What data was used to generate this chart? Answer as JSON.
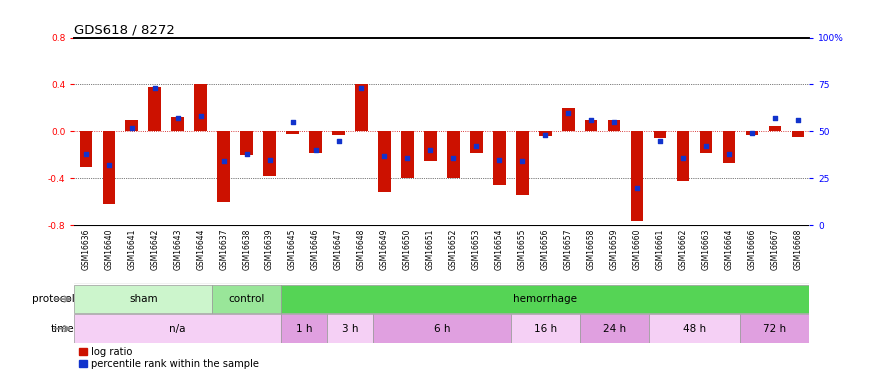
{
  "title": "GDS618 / 8272",
  "samples": [
    "GSM16636",
    "GSM16640",
    "GSM16641",
    "GSM16642",
    "GSM16643",
    "GSM16644",
    "GSM16637",
    "GSM16638",
    "GSM16639",
    "GSM16645",
    "GSM16646",
    "GSM16647",
    "GSM16648",
    "GSM16649",
    "GSM16650",
    "GSM16651",
    "GSM16652",
    "GSM16653",
    "GSM16654",
    "GSM16655",
    "GSM16656",
    "GSM16657",
    "GSM16658",
    "GSM16659",
    "GSM16660",
    "GSM16661",
    "GSM16662",
    "GSM16663",
    "GSM16664",
    "GSM16666",
    "GSM16667",
    "GSM16668"
  ],
  "log_ratio": [
    -0.3,
    -0.62,
    0.1,
    0.38,
    0.12,
    0.4,
    -0.6,
    -0.2,
    -0.38,
    -0.02,
    -0.18,
    -0.03,
    0.4,
    -0.52,
    -0.4,
    -0.25,
    -0.4,
    -0.18,
    -0.46,
    -0.54,
    -0.04,
    0.2,
    0.1,
    0.1,
    -0.76,
    -0.06,
    -0.42,
    -0.18,
    -0.27,
    -0.03,
    0.05,
    -0.05
  ],
  "percentile": [
    38,
    32,
    52,
    73,
    57,
    58,
    34,
    38,
    35,
    55,
    40,
    45,
    73,
    37,
    36,
    40,
    36,
    42,
    35,
    34,
    48,
    60,
    56,
    55,
    20,
    45,
    36,
    42,
    38,
    49,
    57,
    56
  ],
  "protocol_groups": [
    {
      "label": "sham",
      "start": 0,
      "end": 6,
      "color": "#ccf5cc"
    },
    {
      "label": "control",
      "start": 6,
      "end": 9,
      "color": "#99e699"
    },
    {
      "label": "hemorrhage",
      "start": 9,
      "end": 32,
      "color": "#55d455"
    }
  ],
  "time_groups": [
    {
      "label": "n/a",
      "start": 0,
      "end": 9,
      "color": "#f5d0f5"
    },
    {
      "label": "1 h",
      "start": 9,
      "end": 11,
      "color": "#e0a0e0"
    },
    {
      "label": "3 h",
      "start": 11,
      "end": 13,
      "color": "#f5d0f5"
    },
    {
      "label": "6 h",
      "start": 13,
      "end": 19,
      "color": "#e0a0e0"
    },
    {
      "label": "16 h",
      "start": 19,
      "end": 22,
      "color": "#f5d0f5"
    },
    {
      "label": "24 h",
      "start": 22,
      "end": 25,
      "color": "#e0a0e0"
    },
    {
      "label": "48 h",
      "start": 25,
      "end": 29,
      "color": "#f5d0f5"
    },
    {
      "label": "72 h",
      "start": 29,
      "end": 32,
      "color": "#e0a0e0"
    }
  ],
  "ylim": [
    -0.8,
    0.8
  ],
  "yticks_left": [
    -0.8,
    -0.4,
    0.0,
    0.4,
    0.8
  ],
  "yticks_right": [
    0,
    25,
    50,
    75,
    100
  ],
  "bar_color": "#cc1100",
  "dot_color": "#1133cc",
  "zero_line_color": "#cc0000",
  "grid_color": "#000000",
  "bg_color": "#ffffff",
  "sample_bg": "#d8d8d8",
  "label_fontsize": 7.5,
  "tick_fontsize": 6.5,
  "title_fontsize": 9.5,
  "row_label_color": "#888888",
  "arrow_color": "#888888"
}
